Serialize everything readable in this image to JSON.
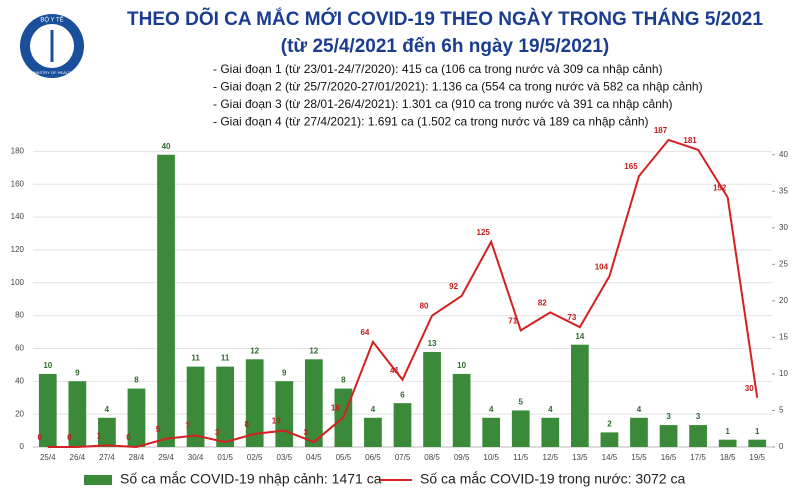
{
  "chart_data": {
    "type": "bar",
    "logo_top": "BỘ Y TẾ",
    "logo_bottom": "MINISTRY OF HEALTH",
    "title": "THEO DÕI CA MẮC MỚI COVID-19 THEO NGÀY TRONG THÁNG 5/2021",
    "subtitle": "(từ 25/4/2021 đến 6h ngày 19/5/2021)",
    "notes": [
      "- Giai đoạn 1 (từ 23/01-24/7/2020): 415 ca (106 ca trong nước và 309 ca nhập cảnh)",
      "- Giai đoạn 2 (từ 25/7/2020-27/01/2021): 1.136 ca (554 ca trong nước và 582 ca nhập cảnh)",
      "- Giai đoạn 3 (từ 28/01-26/4/2021): 1.301 ca (910 ca trong nước và 391 ca nhập cảnh)",
      "- Giai đoạn 4 (từ 27/4/2021): 1.691 ca (1.502 ca trong nước và 189 ca nhập cảnh)"
    ],
    "categories": [
      "25/4",
      "26/4",
      "27/4",
      "28/4",
      "29/4",
      "30/4",
      "01/5",
      "02/5",
      "03/5",
      "04/5",
      "05/5",
      "06/5",
      "07/5",
      "08/5",
      "09/5",
      "10/5",
      "11/5",
      "12/5",
      "13/5",
      "14/5",
      "15/5",
      "16/5",
      "17/5",
      "18/5",
      "19/5"
    ],
    "series": [
      {
        "name": "Số ca mắc COVID-19 nhập cảnh: 1471 ca",
        "type": "bar",
        "axis": "y2",
        "color": "#3a8a3a",
        "label_color": "#2e6b2e",
        "values": [
          10,
          9,
          4,
          8,
          40,
          11,
          11,
          12,
          9,
          12,
          8,
          4,
          6,
          13,
          10,
          4,
          5,
          4,
          14,
          2,
          4,
          3,
          3,
          1,
          1
        ]
      },
      {
        "name": "Số ca mắc COVID-19 trong nước: 3072 ca",
        "type": "line",
        "color": "#d42020",
        "label_color": "#c41a1a",
        "values": [
          0,
          0,
          1,
          0,
          5,
          7,
          3,
          8,
          10,
          3,
          18,
          64,
          41,
          80,
          92,
          125,
          71,
          82,
          73,
          104,
          165,
          187,
          181,
          152,
          30
        ]
      }
    ],
    "ylim": [
      0,
      190
    ],
    "yticks": [
      0,
      20,
      40,
      60,
      80,
      100,
      120,
      140,
      160,
      180
    ],
    "y2lim": [
      0,
      42.7
    ],
    "y2ticks": [
      0,
      5,
      10,
      15,
      20,
      25,
      30,
      35,
      40
    ],
    "grid": true
  }
}
